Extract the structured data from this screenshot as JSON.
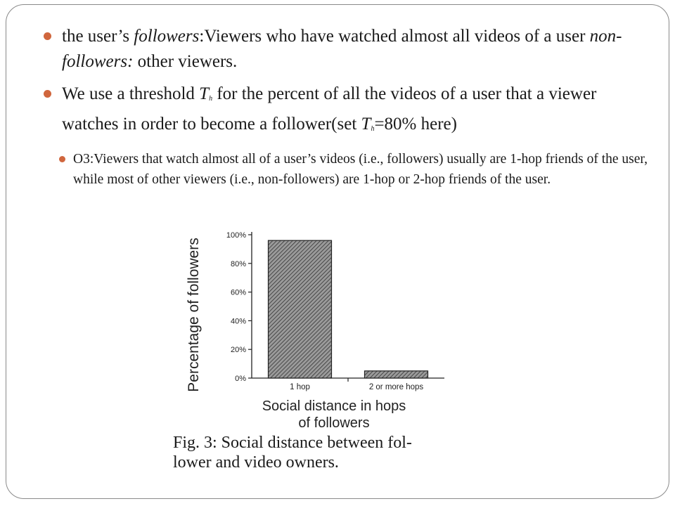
{
  "bullets": {
    "b1": {
      "pre": "the user’s ",
      "em1": "followers",
      "mid": ":Viewers who have watched almost all videos of a user ",
      "em2": "non-followers:",
      "post": " other viewers."
    },
    "b2": {
      "pre": "We use a threshold ",
      "t1": "T",
      "s1": "h",
      "mid": " for the percent of all the videos of a user that a viewer watches in order to become a follower(set ",
      "t2": "T",
      "s2": "h",
      "post": "=80% here)"
    },
    "b3": {
      "text": "O3:Viewers that watch almost all of a user’s videos (i.e., followers) usually are 1-hop friends of the user, while most of other viewers (i.e., non-followers) are 1-hop or 2-hop friends of the user."
    }
  },
  "figure": {
    "caption_line1": "Fig. 3: Social distance between fol-",
    "caption_line2": "lower and video owners."
  },
  "chart_data": {
    "type": "bar",
    "categories": [
      "1 hop",
      "2 or more hops"
    ],
    "values": [
      96,
      5
    ],
    "ylabel": "Percentage of followers",
    "xlabel_line1": "Social distance in hops",
    "xlabel_line2": "of followers",
    "ylim": [
      0,
      100
    ],
    "yticks": [
      {
        "v": 0,
        "label": "0%"
      },
      {
        "v": 20,
        "label": "20%"
      },
      {
        "v": 40,
        "label": "40%"
      },
      {
        "v": 60,
        "label": "60%"
      },
      {
        "v": 80,
        "label": "80%"
      },
      {
        "v": 100,
        "label": "100%"
      }
    ],
    "bar_fill": "hatched",
    "grid": false
  },
  "colors": {
    "bullet": "#d0663d",
    "frame": "#8a8a8a"
  }
}
